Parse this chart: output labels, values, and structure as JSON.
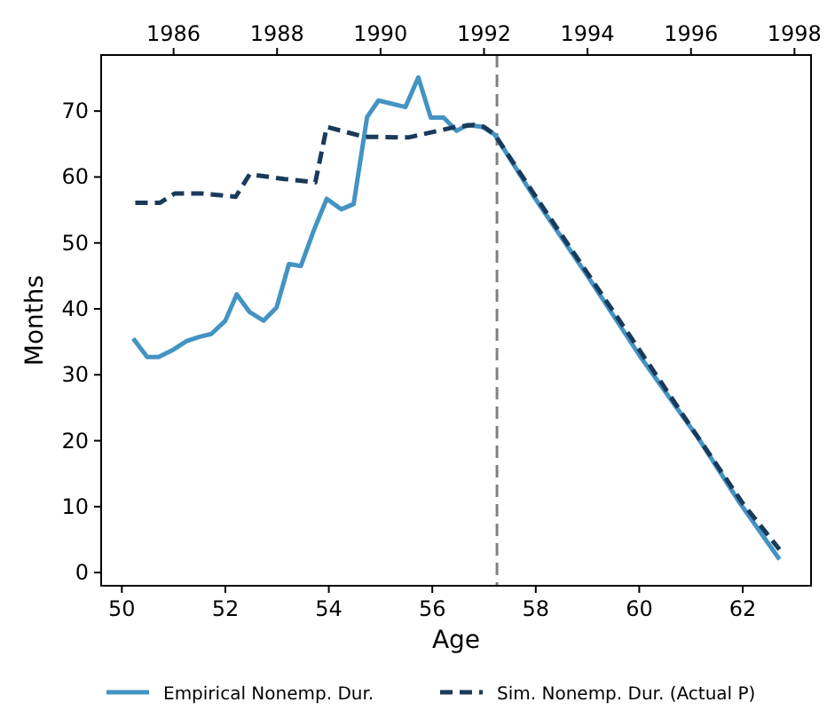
{
  "chart_data": {
    "type": "line",
    "xlabel": "Age",
    "ylabel": "Months",
    "xlim": [
      49.6,
      63.32
    ],
    "xticks": [
      50,
      52,
      54,
      56,
      58,
      60,
      62
    ],
    "x2lim": [
      1984.6,
      1998.32
    ],
    "x2ticks": [
      1986,
      1988,
      1990,
      1992,
      1994,
      1996,
      1998
    ],
    "ylim": [
      -2,
      78.5
    ],
    "yticks": [
      0,
      10,
      20,
      30,
      40,
      50,
      60,
      70
    ],
    "grid": false,
    "legend": "bottom",
    "ref_lines": [
      {
        "axis": "x",
        "value": 57.25,
        "color": "#808080",
        "line_style": "dashed"
      }
    ],
    "series": [
      {
        "name": "Empirical Nonemp. Dur.",
        "color": "#4393c3",
        "line_style": "solid",
        "x": [
          50.22,
          50.49,
          50.71,
          50.97,
          51.25,
          51.48,
          51.73,
          52.0,
          52.22,
          52.47,
          52.74,
          52.99,
          53.23,
          53.46,
          53.71,
          53.96,
          54.24,
          54.48,
          54.74,
          54.96,
          55.48,
          55.73,
          55.97,
          56.22,
          56.47,
          56.68,
          56.97,
          57.21,
          57.94,
          59.0,
          60.0,
          61.14,
          61.94,
          62.71
        ],
        "values": [
          35.5,
          32.7,
          32.7,
          33.7,
          35.1,
          35.7,
          36.2,
          38.2,
          42.2,
          39.5,
          38.2,
          40.2,
          46.8,
          46.5,
          51.9,
          56.7,
          55.1,
          55.9,
          69.1,
          71.6,
          70.6,
          75.1,
          69.0,
          69.0,
          67.0,
          67.9,
          67.6,
          66.4,
          57.3,
          45,
          33,
          20.4,
          10.6,
          2.0
        ]
      },
      {
        "name": "Sim. Nonemp. Dur. (Actual P)",
        "color": "#1a3a5a",
        "line_style": "dashed",
        "x": [
          50.26,
          50.74,
          51.02,
          51.54,
          52.2,
          52.47,
          53.14,
          53.74,
          53.96,
          54.68,
          55.54,
          55.71,
          56.45,
          56.8,
          57.0,
          57.21,
          58.0,
          59.0,
          60.0,
          61.0,
          62.0,
          62.71
        ],
        "values": [
          56.1,
          56.1,
          57.5,
          57.5,
          57.0,
          60.4,
          59.7,
          59.2,
          67.6,
          66.1,
          66.0,
          66.3,
          67.6,
          67.9,
          67.6,
          66.4,
          57.0,
          45.4,
          33.8,
          22.1,
          10.5,
          3.5
        ]
      }
    ]
  }
}
